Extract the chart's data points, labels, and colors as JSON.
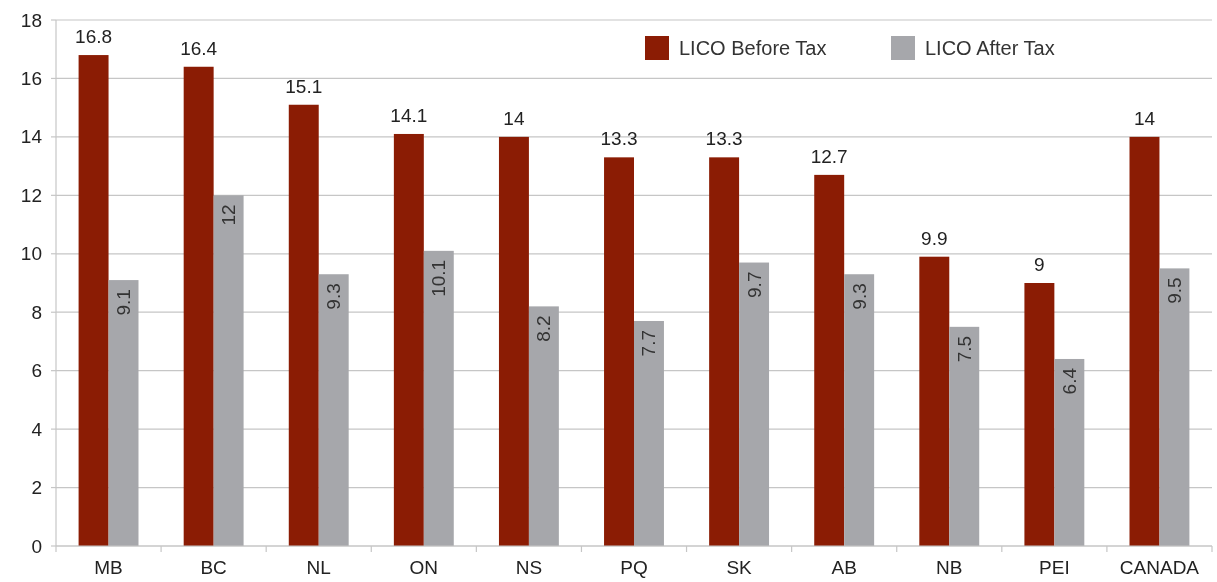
{
  "chart_data": {
    "type": "bar",
    "categories": [
      "MB",
      "BC",
      "NL",
      "ON",
      "NS",
      "PQ",
      "SK",
      "AB",
      "NB",
      "PEI",
      "CANADA"
    ],
    "series": [
      {
        "name": "LICO Before Tax",
        "color": "#8b1c04",
        "values": [
          16.8,
          16.4,
          15.1,
          14.1,
          14,
          13.3,
          13.3,
          12.7,
          9.9,
          9,
          14
        ]
      },
      {
        "name": "LICO After Tax",
        "color": "#a6a7ab",
        "values": [
          9.1,
          12,
          9.3,
          10.1,
          8.2,
          7.7,
          9.7,
          9.3,
          7.5,
          6.4,
          9.5
        ]
      }
    ],
    "ylim": [
      0,
      18
    ],
    "yticks": [
      0,
      2,
      4,
      6,
      8,
      10,
      12,
      14,
      16,
      18
    ],
    "grid": "y",
    "legend": "top right",
    "data_labels": true
  }
}
